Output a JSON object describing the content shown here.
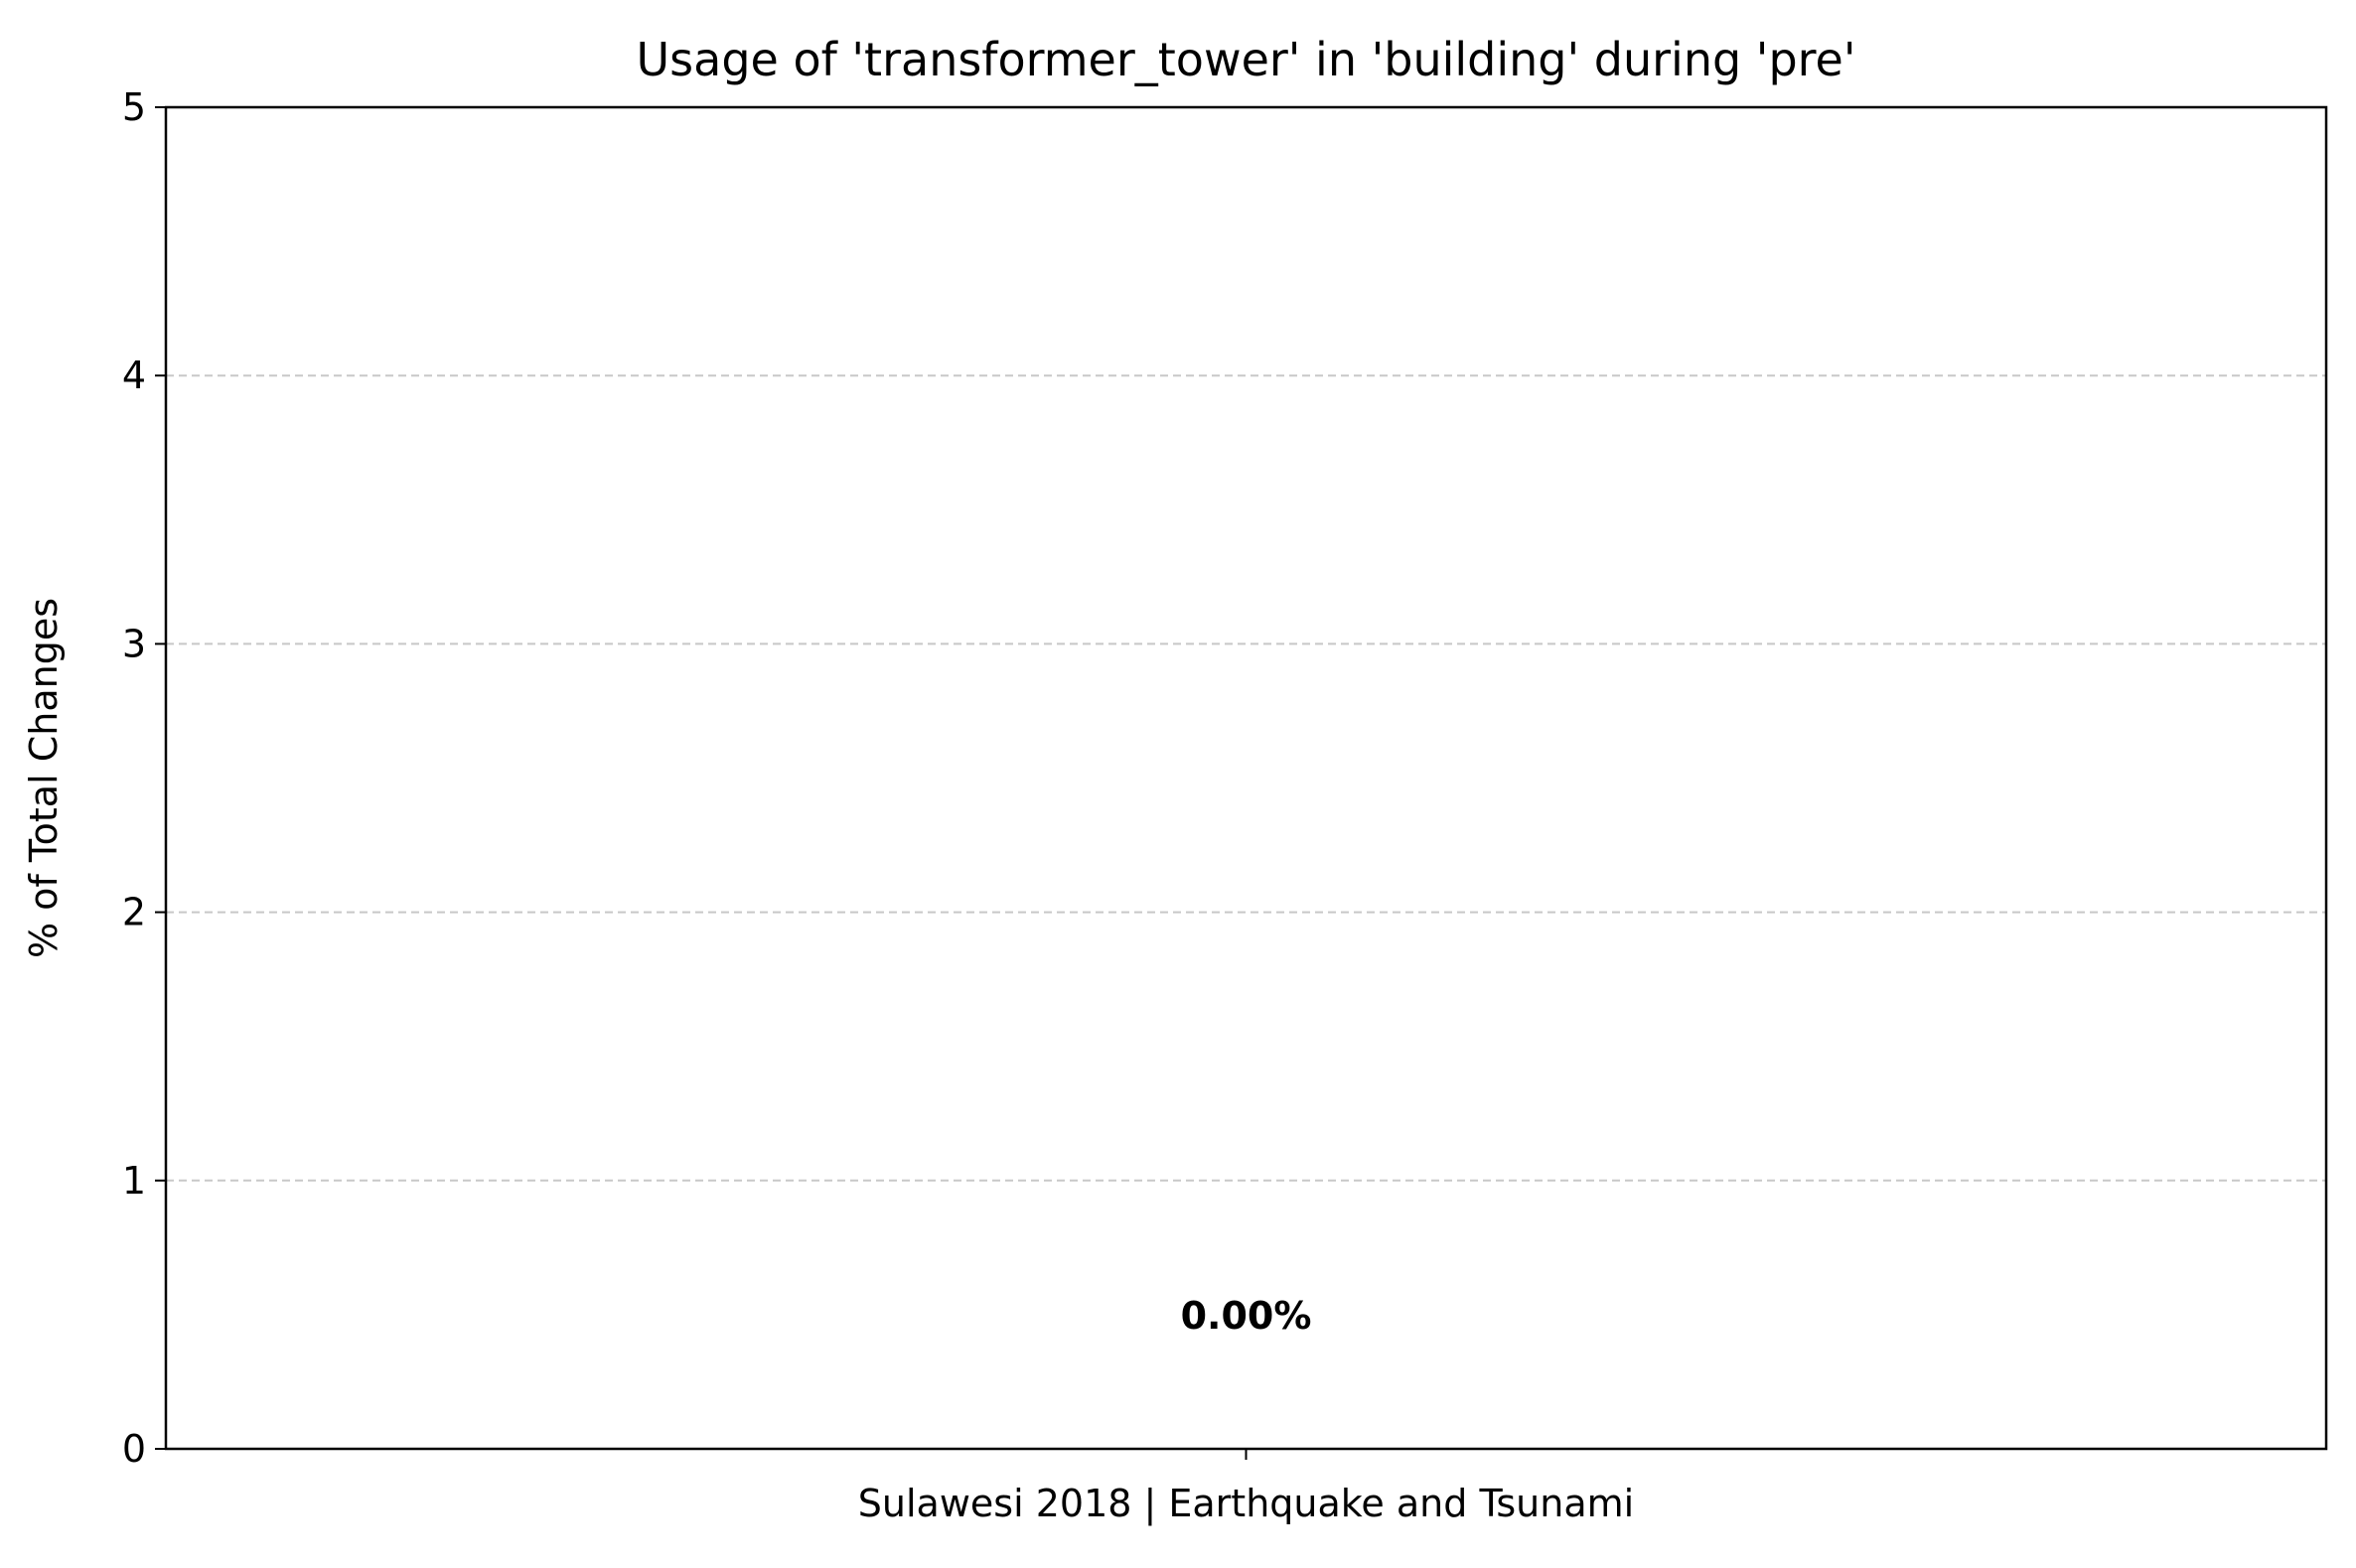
{
  "chart_data": {
    "type": "bar",
    "title": "Usage of 'transformer_tower' in 'building' during 'pre'",
    "xlabel": "",
    "ylabel": "% of Total Changes",
    "categories": [
      "Sulawesi 2018 | Earthquake and Tsunami"
    ],
    "values": [
      0.0
    ],
    "data_labels": [
      "0.00%"
    ],
    "ylim": [
      0,
      5
    ],
    "yticks": [
      0,
      1,
      2,
      3,
      4,
      5
    ],
    "grid": {
      "axis": "y",
      "style": "dashed",
      "color": "#c8c8c8"
    },
    "bar_color": "#1f77b4",
    "legend": "none"
  }
}
